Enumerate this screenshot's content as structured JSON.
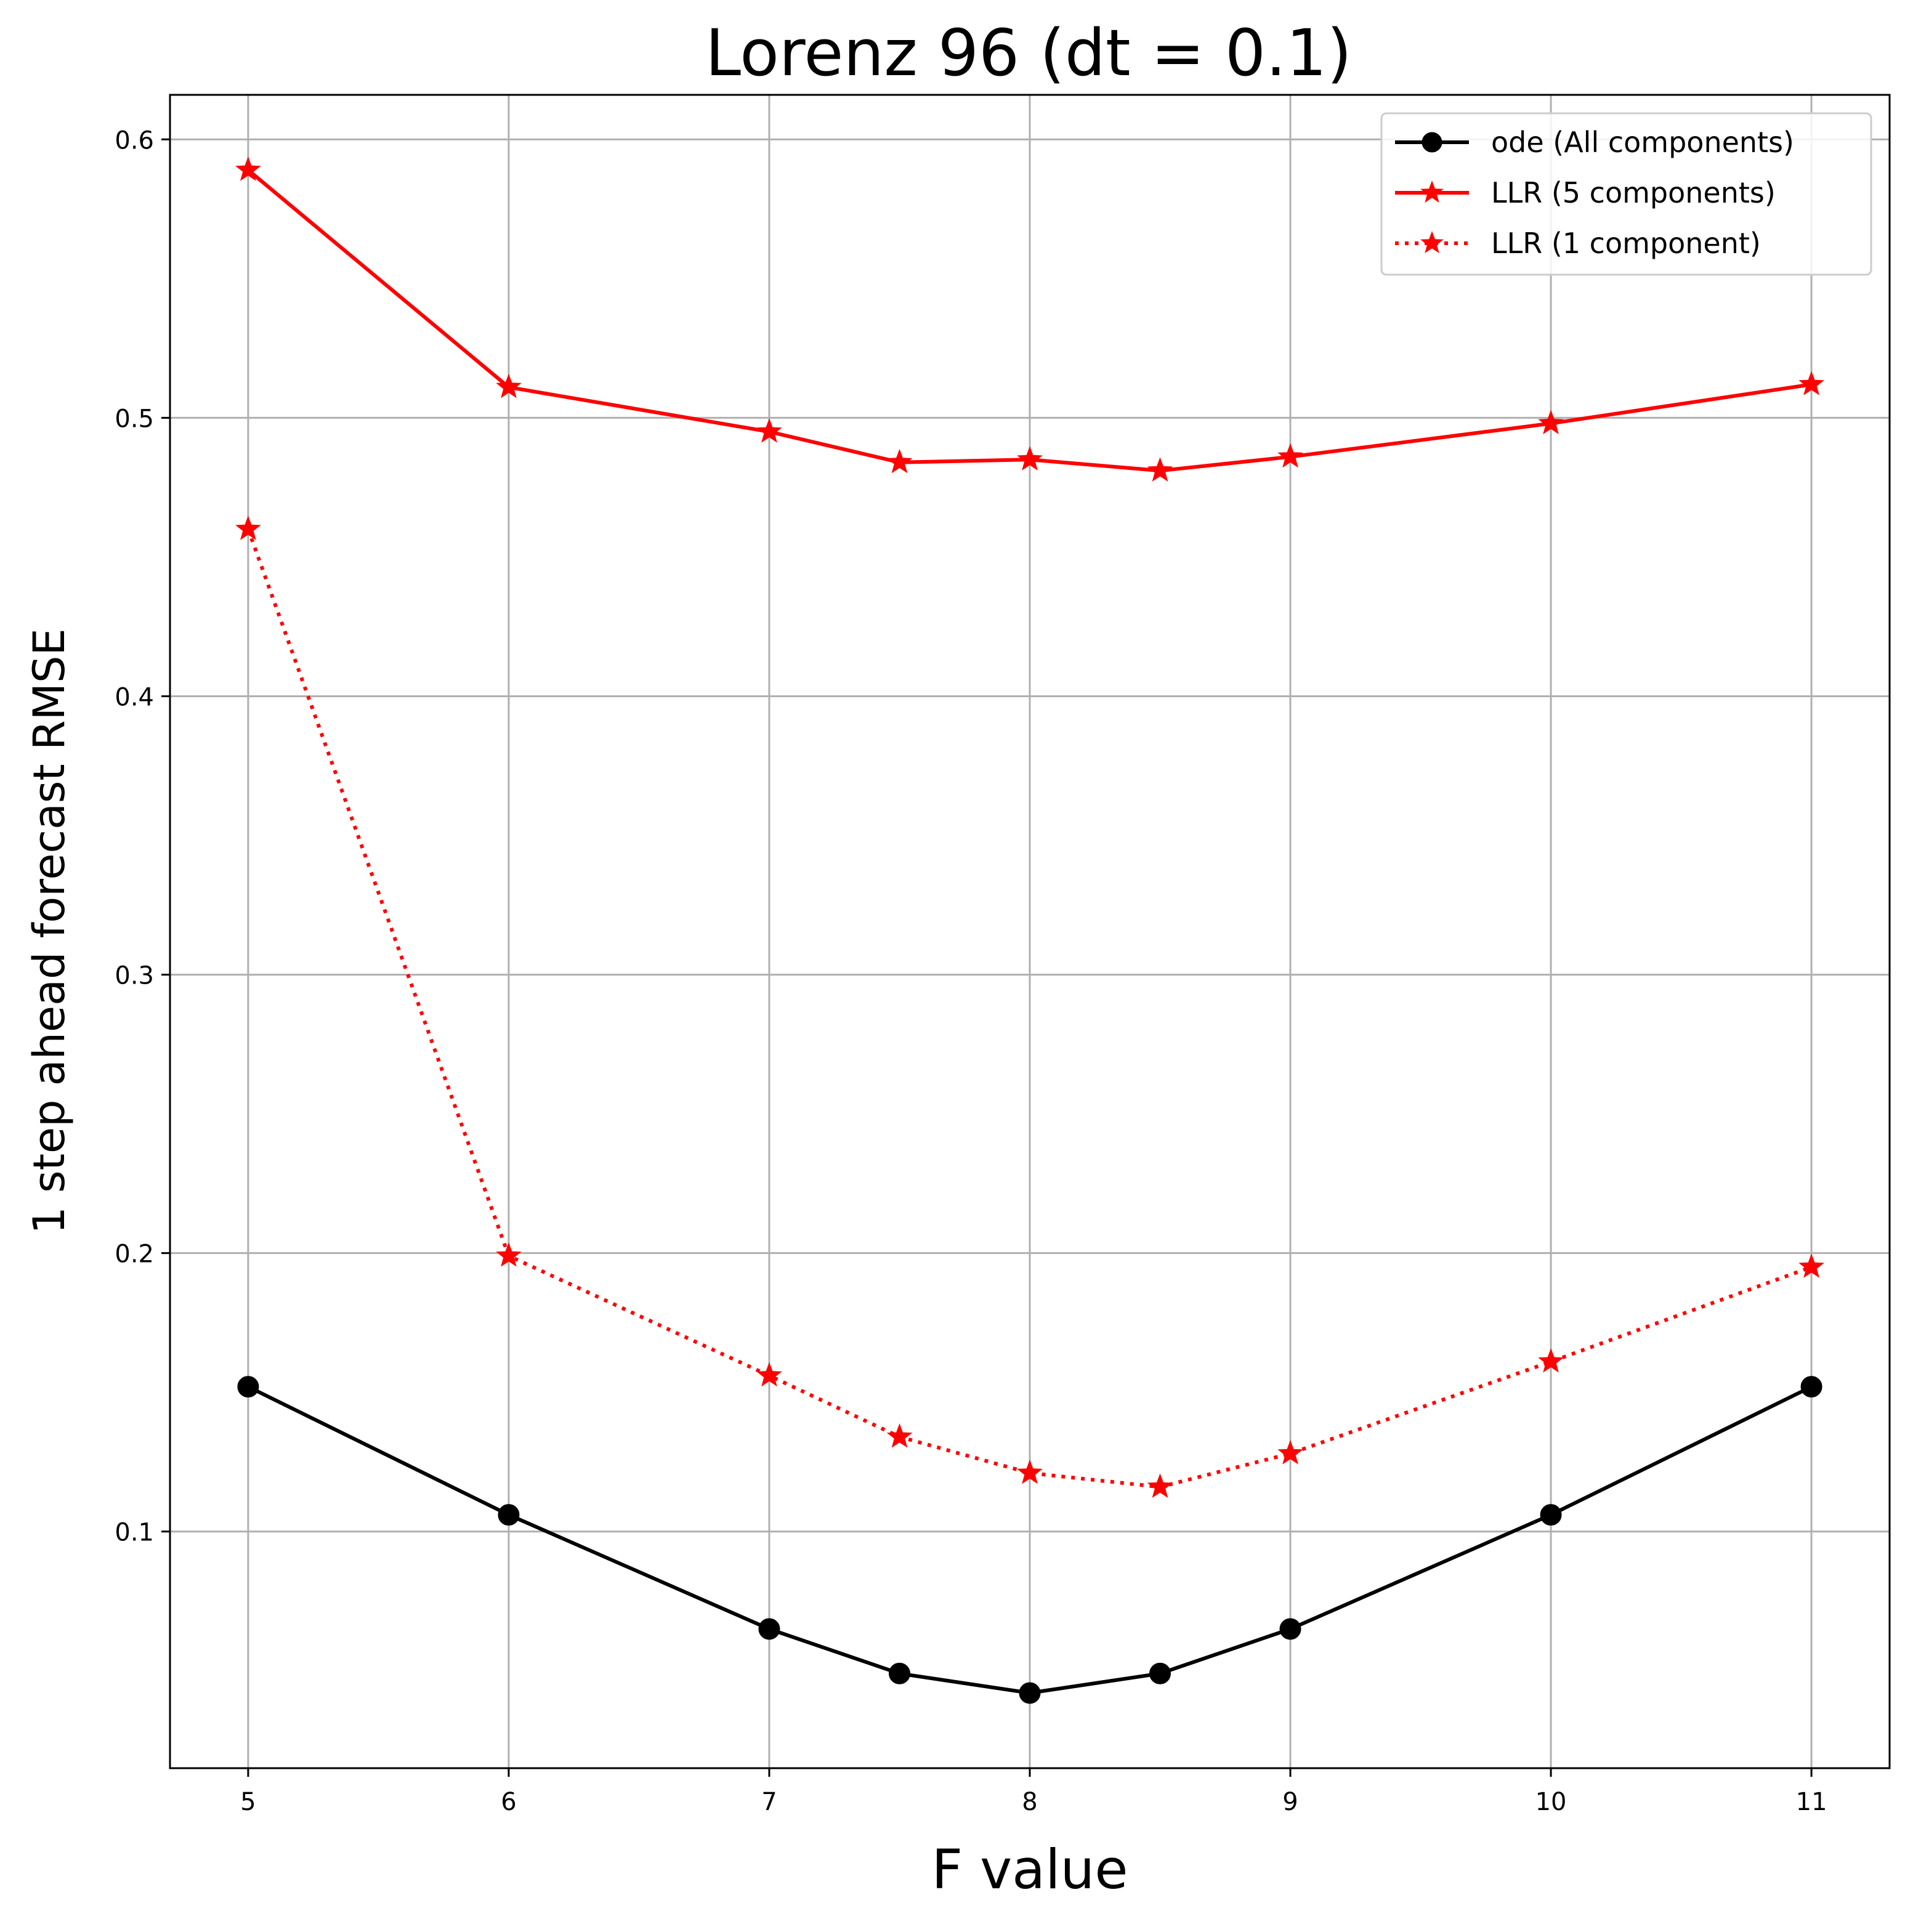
{
  "chart_data": {
    "type": "line",
    "title": "Lorenz 96 (dt = 0.1)",
    "xlabel": "F value",
    "ylabel": "1 step ahead forecast RMSE",
    "x": [
      5,
      6,
      7,
      7.5,
      8,
      8.5,
      9,
      10,
      11
    ],
    "xlim": [
      4.7,
      11.3
    ],
    "ylim": [
      0.015,
      0.616
    ],
    "xticks": [
      5,
      6,
      7,
      8,
      9,
      10,
      11
    ],
    "xtick_labels": [
      "5",
      "6",
      "7",
      "8",
      "9",
      "10",
      "11"
    ],
    "yticks": [
      0.1,
      0.2,
      0.3,
      0.4,
      0.5,
      0.6
    ],
    "ytick_labels": [
      "0.1",
      "0.2",
      "0.3",
      "0.4",
      "0.5",
      "0.6"
    ],
    "grid": true,
    "legend_position": "top-right",
    "series": [
      {
        "name": "ode (All components)",
        "values": [
          0.152,
          0.106,
          0.065,
          0.049,
          0.042,
          0.049,
          0.065,
          0.106,
          0.152
        ],
        "color": "#000000",
        "linestyle": "solid",
        "marker": "circle"
      },
      {
        "name": "LLR (5 components)",
        "values": [
          0.589,
          0.511,
          0.495,
          0.484,
          0.485,
          0.481,
          0.486,
          0.498,
          0.512
        ],
        "color": "#ff0000",
        "linestyle": "solid",
        "marker": "star"
      },
      {
        "name": "LLR (1 component)",
        "values": [
          0.46,
          0.199,
          0.156,
          0.134,
          0.121,
          0.116,
          0.128,
          0.161,
          0.195
        ],
        "color": "#ff0000",
        "linestyle": "dotted",
        "marker": "star"
      }
    ]
  }
}
